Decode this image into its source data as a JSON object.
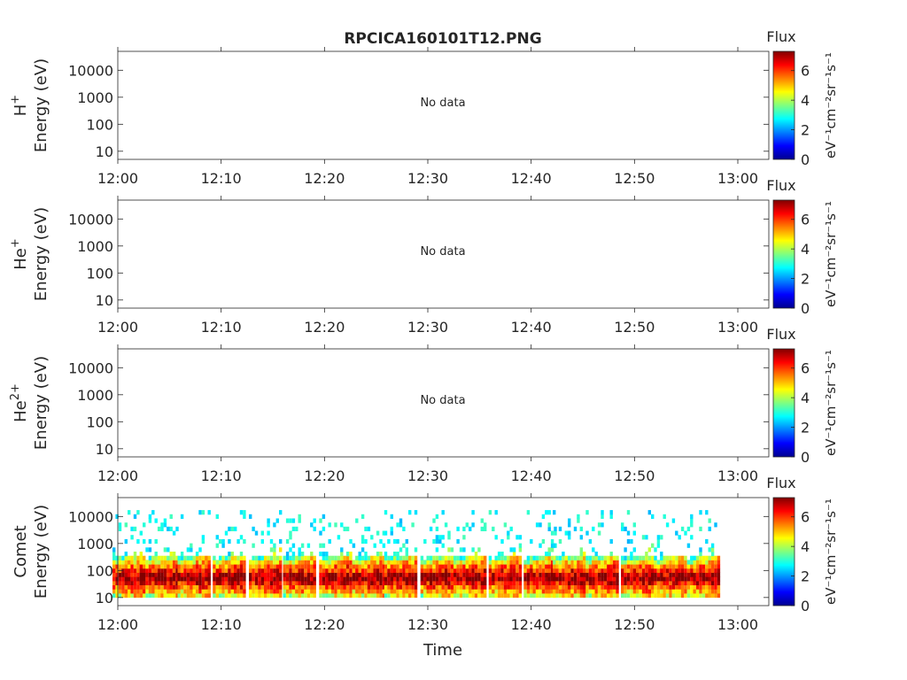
{
  "title": "RPCICA160101T12.PNG",
  "xlabel": "Time",
  "x_ticks": [
    "12:00",
    "12:10",
    "12:20",
    "12:30",
    "12:40",
    "12:50",
    "13:00"
  ],
  "y_ticks": [
    "10",
    "100",
    "1000",
    "10000"
  ],
  "colorbar": {
    "title": "Flux",
    "ticks": [
      "0",
      "2",
      "4",
      "6"
    ],
    "range": [
      0,
      7.3
    ],
    "unit_label": "eV⁻¹cm⁻²sr⁻¹s⁻¹"
  },
  "colors": {
    "axis": "#262626",
    "colormap": [
      "#00008f",
      "#0000ff",
      "#0080ff",
      "#00ffff",
      "#80ff80",
      "#ffff00",
      "#ff8000",
      "#ff0000",
      "#800000"
    ]
  },
  "chart_data": [
    {
      "type": "heatmap",
      "species": "H",
      "charge": "+",
      "ylabel": "Energy (eV)",
      "ylog": true,
      "ylim": [
        5,
        50000
      ],
      "xlim": [
        "12:00",
        "13:03"
      ],
      "message": "No data"
    },
    {
      "type": "heatmap",
      "species": "He",
      "charge": "+",
      "ylabel": "Energy (eV)",
      "ylog": true,
      "ylim": [
        5,
        50000
      ],
      "xlim": [
        "12:00",
        "13:03"
      ],
      "message": "No data"
    },
    {
      "type": "heatmap",
      "species": "He",
      "charge": "2+",
      "ylabel": "Energy (eV)",
      "ylog": true,
      "ylim": [
        5,
        50000
      ],
      "xlim": [
        "12:00",
        "13:03"
      ],
      "message": "No data"
    },
    {
      "type": "heatmap",
      "species": "Comet",
      "charge": "",
      "ylabel": "Energy (eV)",
      "ylog": true,
      "ylim": [
        5,
        50000
      ],
      "xlim": [
        "12:00",
        "13:03"
      ],
      "message": "",
      "burst_times_min": [
        0,
        3.2,
        6.3,
        9.7,
        13.2,
        16.5,
        20.0,
        23.2,
        26.3,
        29.8,
        33.0,
        36.4,
        39.8,
        42.6,
        45.8,
        49.2,
        52.4,
        55.6
      ],
      "peak_flux_energy_eV": [
        40,
        70
      ],
      "peak_flux": 7,
      "max_energy_eV": 15000
    }
  ]
}
